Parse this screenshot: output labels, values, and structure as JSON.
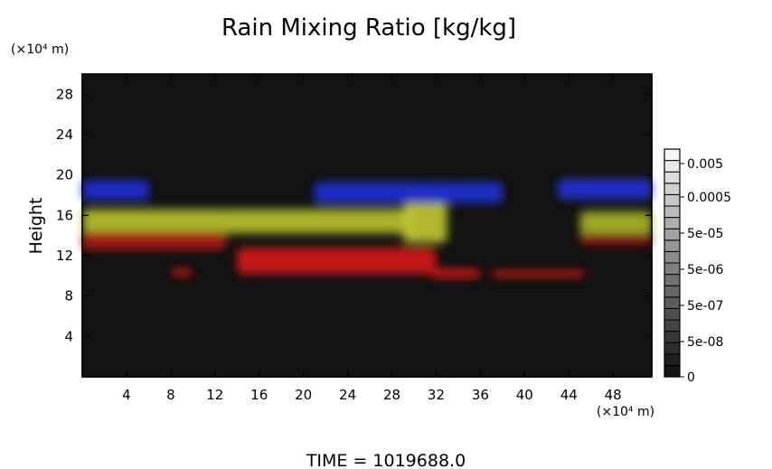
{
  "chart_data": {
    "type": "heatmap",
    "title": "Rain Mixing Ratio [kg/kg]",
    "ylabel": "Height",
    "y_unit": "(×10⁴ m)",
    "x_unit": "(×10⁴ m)",
    "xlabel": "",
    "xlim": [
      0,
      51.5
    ],
    "ylim": [
      0,
      30
    ],
    "x_ticks": [
      4,
      8,
      12,
      16,
      20,
      24,
      28,
      32,
      36,
      40,
      44,
      48
    ],
    "y_ticks": [
      4,
      8,
      12,
      16,
      20,
      24,
      28
    ],
    "background_color": "#121212",
    "colorbar": {
      "labels": [
        "0.005",
        "0.0005",
        "5e-05",
        "5e-06",
        "5e-07",
        "5e-08",
        "0"
      ],
      "n_steps": 20
    },
    "footer": "TIME = 1019688.0",
    "regions": [
      {
        "name": "blue-layer",
        "color": "#1f2bd6",
        "x": [
          0,
          6
        ],
        "y": [
          17.5,
          19.5
        ]
      },
      {
        "name": "blue-layer",
        "color": "#2030d8",
        "x": [
          21,
          38
        ],
        "y": [
          17.2,
          19.3
        ]
      },
      {
        "name": "blue-layer",
        "color": "#2232d8",
        "x": [
          43,
          51.5
        ],
        "y": [
          17.6,
          19.6
        ]
      },
      {
        "name": "yellow-layer",
        "color": "#b9c22c",
        "x": [
          0,
          30
        ],
        "y": [
          14.2,
          16.6
        ]
      },
      {
        "name": "yellow-layer",
        "color": "#c2c832",
        "x": [
          29,
          33
        ],
        "y": [
          13.3,
          17.2
        ]
      },
      {
        "name": "yellow-layer",
        "color": "#a9b52a",
        "x": [
          45,
          51.5
        ],
        "y": [
          14.0,
          16.4
        ]
      },
      {
        "name": "red-layer",
        "color": "#b01414",
        "x": [
          0,
          13
        ],
        "y": [
          12.6,
          14.4
        ]
      },
      {
        "name": "red-layer",
        "color": "#d81515",
        "x": [
          14,
          32
        ],
        "y": [
          10.2,
          12.8
        ]
      },
      {
        "name": "red-layer",
        "color": "#e11818",
        "x": [
          31.5,
          36
        ],
        "y": [
          9.8,
          10.7
        ]
      },
      {
        "name": "red-layer",
        "color": "#e11818",
        "x": [
          37,
          45.5
        ],
        "y": [
          9.9,
          10.5
        ]
      },
      {
        "name": "red-layer",
        "color": "#d41414",
        "x": [
          8,
          10
        ],
        "y": [
          10.0,
          10.7
        ]
      },
      {
        "name": "red-layer",
        "color": "#8a1212",
        "x": [
          45,
          51.5
        ],
        "y": [
          13.0,
          14.2
        ]
      }
    ]
  }
}
